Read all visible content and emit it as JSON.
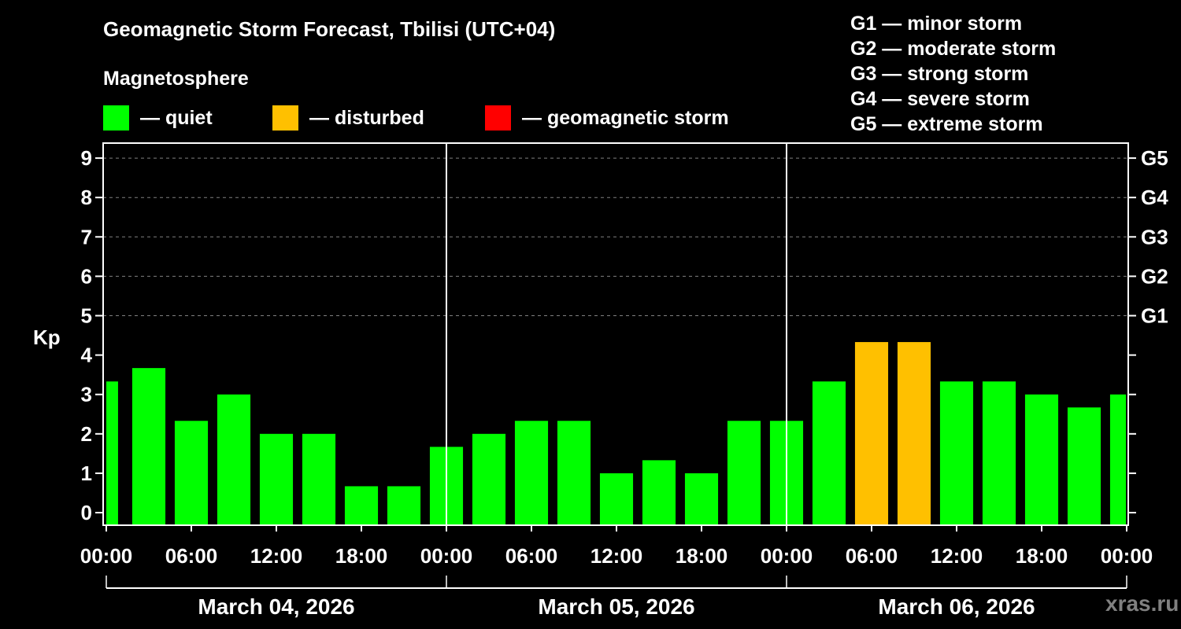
{
  "header": {
    "title": "Geomagnetic Storm Forecast, Tbilisi (UTC+04)",
    "subtitle": "Magnetosphere"
  },
  "legend": [
    {
      "label": "— quiet",
      "color": "#00ff00"
    },
    {
      "label": "— disturbed",
      "color": "#ffc000"
    },
    {
      "label": "— geomagnetic storm",
      "color": "#ff0000"
    }
  ],
  "g_scale_legend": [
    "G1 — minor storm",
    "G2 — moderate storm",
    "G3 — strong storm",
    "G4 — severe storm",
    "G5 — extreme storm"
  ],
  "watermark": "xras.ru",
  "colors": {
    "quiet": "#00ff00",
    "disturbed": "#ffc000",
    "storm": "#ff0000",
    "background": "#000000",
    "axis": "#ffffff",
    "grid": "#808080"
  },
  "chart_data": {
    "type": "bar",
    "title": "Geomagnetic Storm Forecast, Tbilisi (UTC+04)",
    "ylabel": "Kp",
    "xlabel": "",
    "ylim": [
      0,
      9
    ],
    "yticks": [
      0,
      1,
      2,
      3,
      4,
      5,
      6,
      7,
      8,
      9
    ],
    "right_axis_ticks": [
      {
        "kp": 5,
        "label": "G1"
      },
      {
        "kp": 6,
        "label": "G2"
      },
      {
        "kp": 7,
        "label": "G3"
      },
      {
        "kp": 8,
        "label": "G4"
      },
      {
        "kp": 9,
        "label": "G5"
      }
    ],
    "grid": "dashed horizontal at Kp 5-9",
    "xtick_labels": [
      "00:00",
      "06:00",
      "12:00",
      "18:00",
      "00:00",
      "06:00",
      "12:00",
      "18:00",
      "00:00",
      "06:00",
      "12:00",
      "18:00",
      "00:00"
    ],
    "days": [
      "March 04, 2026",
      "March 05, 2026",
      "March 06, 2026"
    ],
    "bar_start_hours": [
      0,
      1.5,
      4.5,
      7.5,
      10.5,
      13.5,
      16.5,
      19.5,
      22.5,
      25.5,
      28.5,
      31.5,
      34.5,
      37.5,
      40.5,
      43.5,
      46.5,
      49.5,
      52.5,
      55.5,
      58.5,
      61.5,
      64.5,
      67.5,
      70.5
    ],
    "values": [
      3.33,
      3.67,
      2.33,
      3.0,
      2.0,
      2.0,
      0.67,
      0.67,
      1.67,
      2.0,
      2.33,
      2.33,
      1.0,
      1.33,
      1.0,
      2.33,
      2.33,
      3.33,
      4.33,
      4.33,
      3.33,
      3.33,
      3.0,
      2.67,
      3.0
    ],
    "levels": [
      "quiet",
      "quiet",
      "quiet",
      "quiet",
      "quiet",
      "quiet",
      "quiet",
      "quiet",
      "quiet",
      "quiet",
      "quiet",
      "quiet",
      "quiet",
      "quiet",
      "quiet",
      "quiet",
      "quiet",
      "quiet",
      "disturbed",
      "disturbed",
      "quiet",
      "quiet",
      "quiet",
      "quiet",
      "quiet"
    ]
  }
}
